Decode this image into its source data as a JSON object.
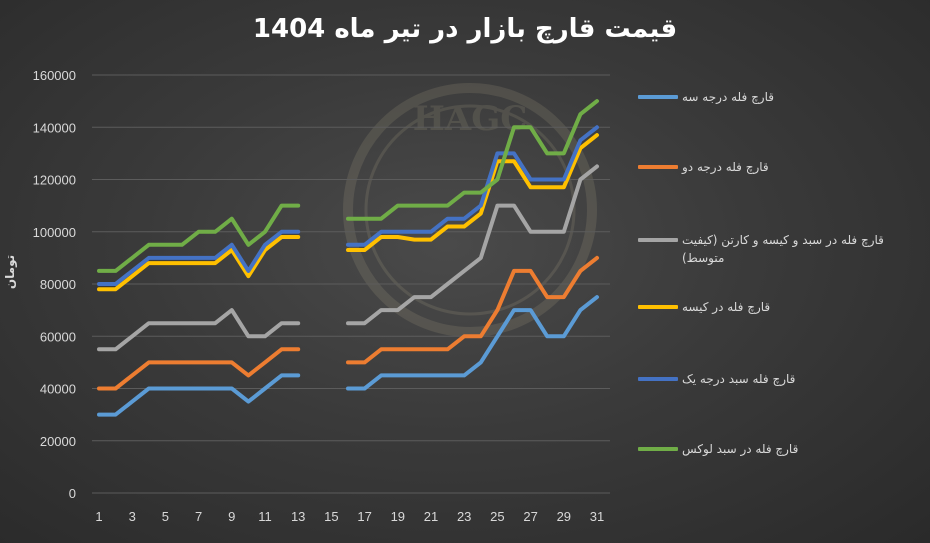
{
  "chart_data": {
    "type": "line",
    "title": "قیمت قارچ بازار در تیر ماه 1404",
    "ylabel": "تومان",
    "xlabel": "",
    "ylim": [
      0,
      160000
    ],
    "yticks": [
      0,
      20000,
      40000,
      60000,
      80000,
      100000,
      120000,
      140000,
      160000
    ],
    "xticks": [
      1,
      3,
      5,
      7,
      9,
      11,
      13,
      15,
      17,
      19,
      21,
      23,
      25,
      27,
      29,
      31
    ],
    "xlim": [
      1,
      31
    ],
    "grid": true,
    "legend_position": "right",
    "x": [
      1,
      2,
      3,
      4,
      5,
      6,
      7,
      8,
      9,
      10,
      11,
      12,
      13,
      14,
      15,
      16,
      17,
      18,
      19,
      20,
      21,
      22,
      23,
      24,
      25,
      26,
      27,
      28,
      29,
      30,
      31
    ],
    "series": [
      {
        "name": "قارچ فله درجه سه",
        "color": "#5b9bd5",
        "values": [
          30000,
          30000,
          35000,
          40000,
          40000,
          40000,
          40000,
          40000,
          40000,
          35000,
          40000,
          45000,
          45000,
          null,
          null,
          40000,
          40000,
          45000,
          45000,
          45000,
          45000,
          45000,
          45000,
          50000,
          60000,
          70000,
          70000,
          60000,
          60000,
          70000,
          75000
        ]
      },
      {
        "name": "قارچ فله درجه دو",
        "color": "#ed7d31",
        "values": [
          40000,
          40000,
          45000,
          50000,
          50000,
          50000,
          50000,
          50000,
          50000,
          45000,
          50000,
          55000,
          55000,
          null,
          null,
          50000,
          50000,
          55000,
          55000,
          55000,
          55000,
          55000,
          60000,
          60000,
          70000,
          85000,
          85000,
          75000,
          75000,
          85000,
          90000
        ]
      },
      {
        "name": "قارچ فله در سبد و کیسه و کارتن (کیفیت متوسط)",
        "color": "#a5a5a5",
        "values": [
          55000,
          55000,
          60000,
          65000,
          65000,
          65000,
          65000,
          65000,
          70000,
          60000,
          60000,
          65000,
          65000,
          null,
          null,
          65000,
          65000,
          70000,
          70000,
          75000,
          75000,
          80000,
          85000,
          90000,
          110000,
          110000,
          100000,
          100000,
          100000,
          120000,
          125000
        ]
      },
      {
        "name": "قارچ فله در کیسه",
        "color": "#ffc000",
        "values": [
          78000,
          78000,
          83000,
          88000,
          88000,
          88000,
          88000,
          88000,
          93000,
          83000,
          93000,
          98000,
          98000,
          null,
          null,
          93000,
          93000,
          98000,
          98000,
          97000,
          97000,
          102000,
          102000,
          107000,
          127000,
          127000,
          117000,
          117000,
          117000,
          132000,
          137000
        ]
      },
      {
        "name": "قارچ فله سبد درجه یک",
        "color": "#4472c4",
        "values": [
          80000,
          80000,
          85000,
          90000,
          90000,
          90000,
          90000,
          90000,
          95000,
          85000,
          95000,
          100000,
          100000,
          null,
          null,
          95000,
          95000,
          100000,
          100000,
          100000,
          100000,
          105000,
          105000,
          110000,
          130000,
          130000,
          120000,
          120000,
          120000,
          135000,
          140000
        ]
      },
      {
        "name": "قارچ فله در سبد لوکس",
        "color": "#70ad47",
        "values": [
          85000,
          85000,
          90000,
          95000,
          95000,
          95000,
          100000,
          100000,
          105000,
          95000,
          100000,
          110000,
          110000,
          null,
          null,
          105000,
          105000,
          105000,
          110000,
          110000,
          110000,
          110000,
          115000,
          115000,
          120000,
          140000,
          140000,
          130000,
          130000,
          145000,
          150000
        ]
      }
    ]
  },
  "watermark": {
    "text": "HAGC"
  }
}
